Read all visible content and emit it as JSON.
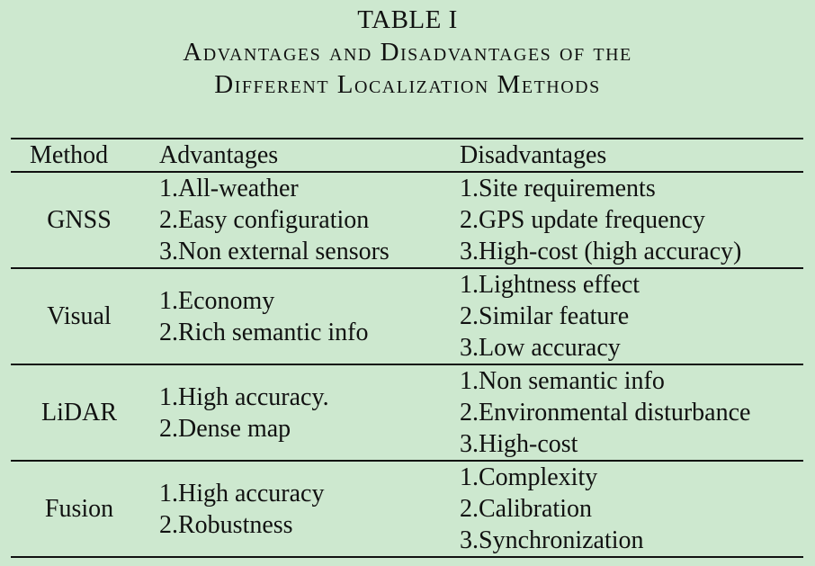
{
  "caption": {
    "label": "TABLE I",
    "title_line_1": "Advantages and Disadvantages of the",
    "title_line_2": "Different Localization Methods"
  },
  "table": {
    "headers": {
      "method": "Method",
      "advantages": "Advantages",
      "disadvantages": "Disadvantages"
    },
    "rows": [
      {
        "method": "GNSS",
        "advantages": [
          "1.All-weather",
          "2.Easy configuration",
          "3.Non external sensors"
        ],
        "disadvantages": [
          "1.Site requirements",
          "2.GPS update frequency",
          "3.High-cost (high accuracy)"
        ]
      },
      {
        "method": "Visual",
        "advantages": [
          "1.Economy",
          "2.Rich semantic info"
        ],
        "disadvantages": [
          "1.Lightness effect",
          "2.Similar feature",
          "3.Low accuracy"
        ]
      },
      {
        "method": "LiDAR",
        "advantages": [
          "1.High accuracy.",
          "2.Dense map"
        ],
        "disadvantages": [
          "1.Non semantic info",
          "2.Environmental disturbance",
          "3.High-cost"
        ]
      },
      {
        "method": "Fusion",
        "advantages": [
          "1.High accuracy",
          "2.Robustness"
        ],
        "disadvantages": [
          "1.Complexity",
          "2.Calibration",
          "3.Synchronization"
        ]
      }
    ]
  }
}
